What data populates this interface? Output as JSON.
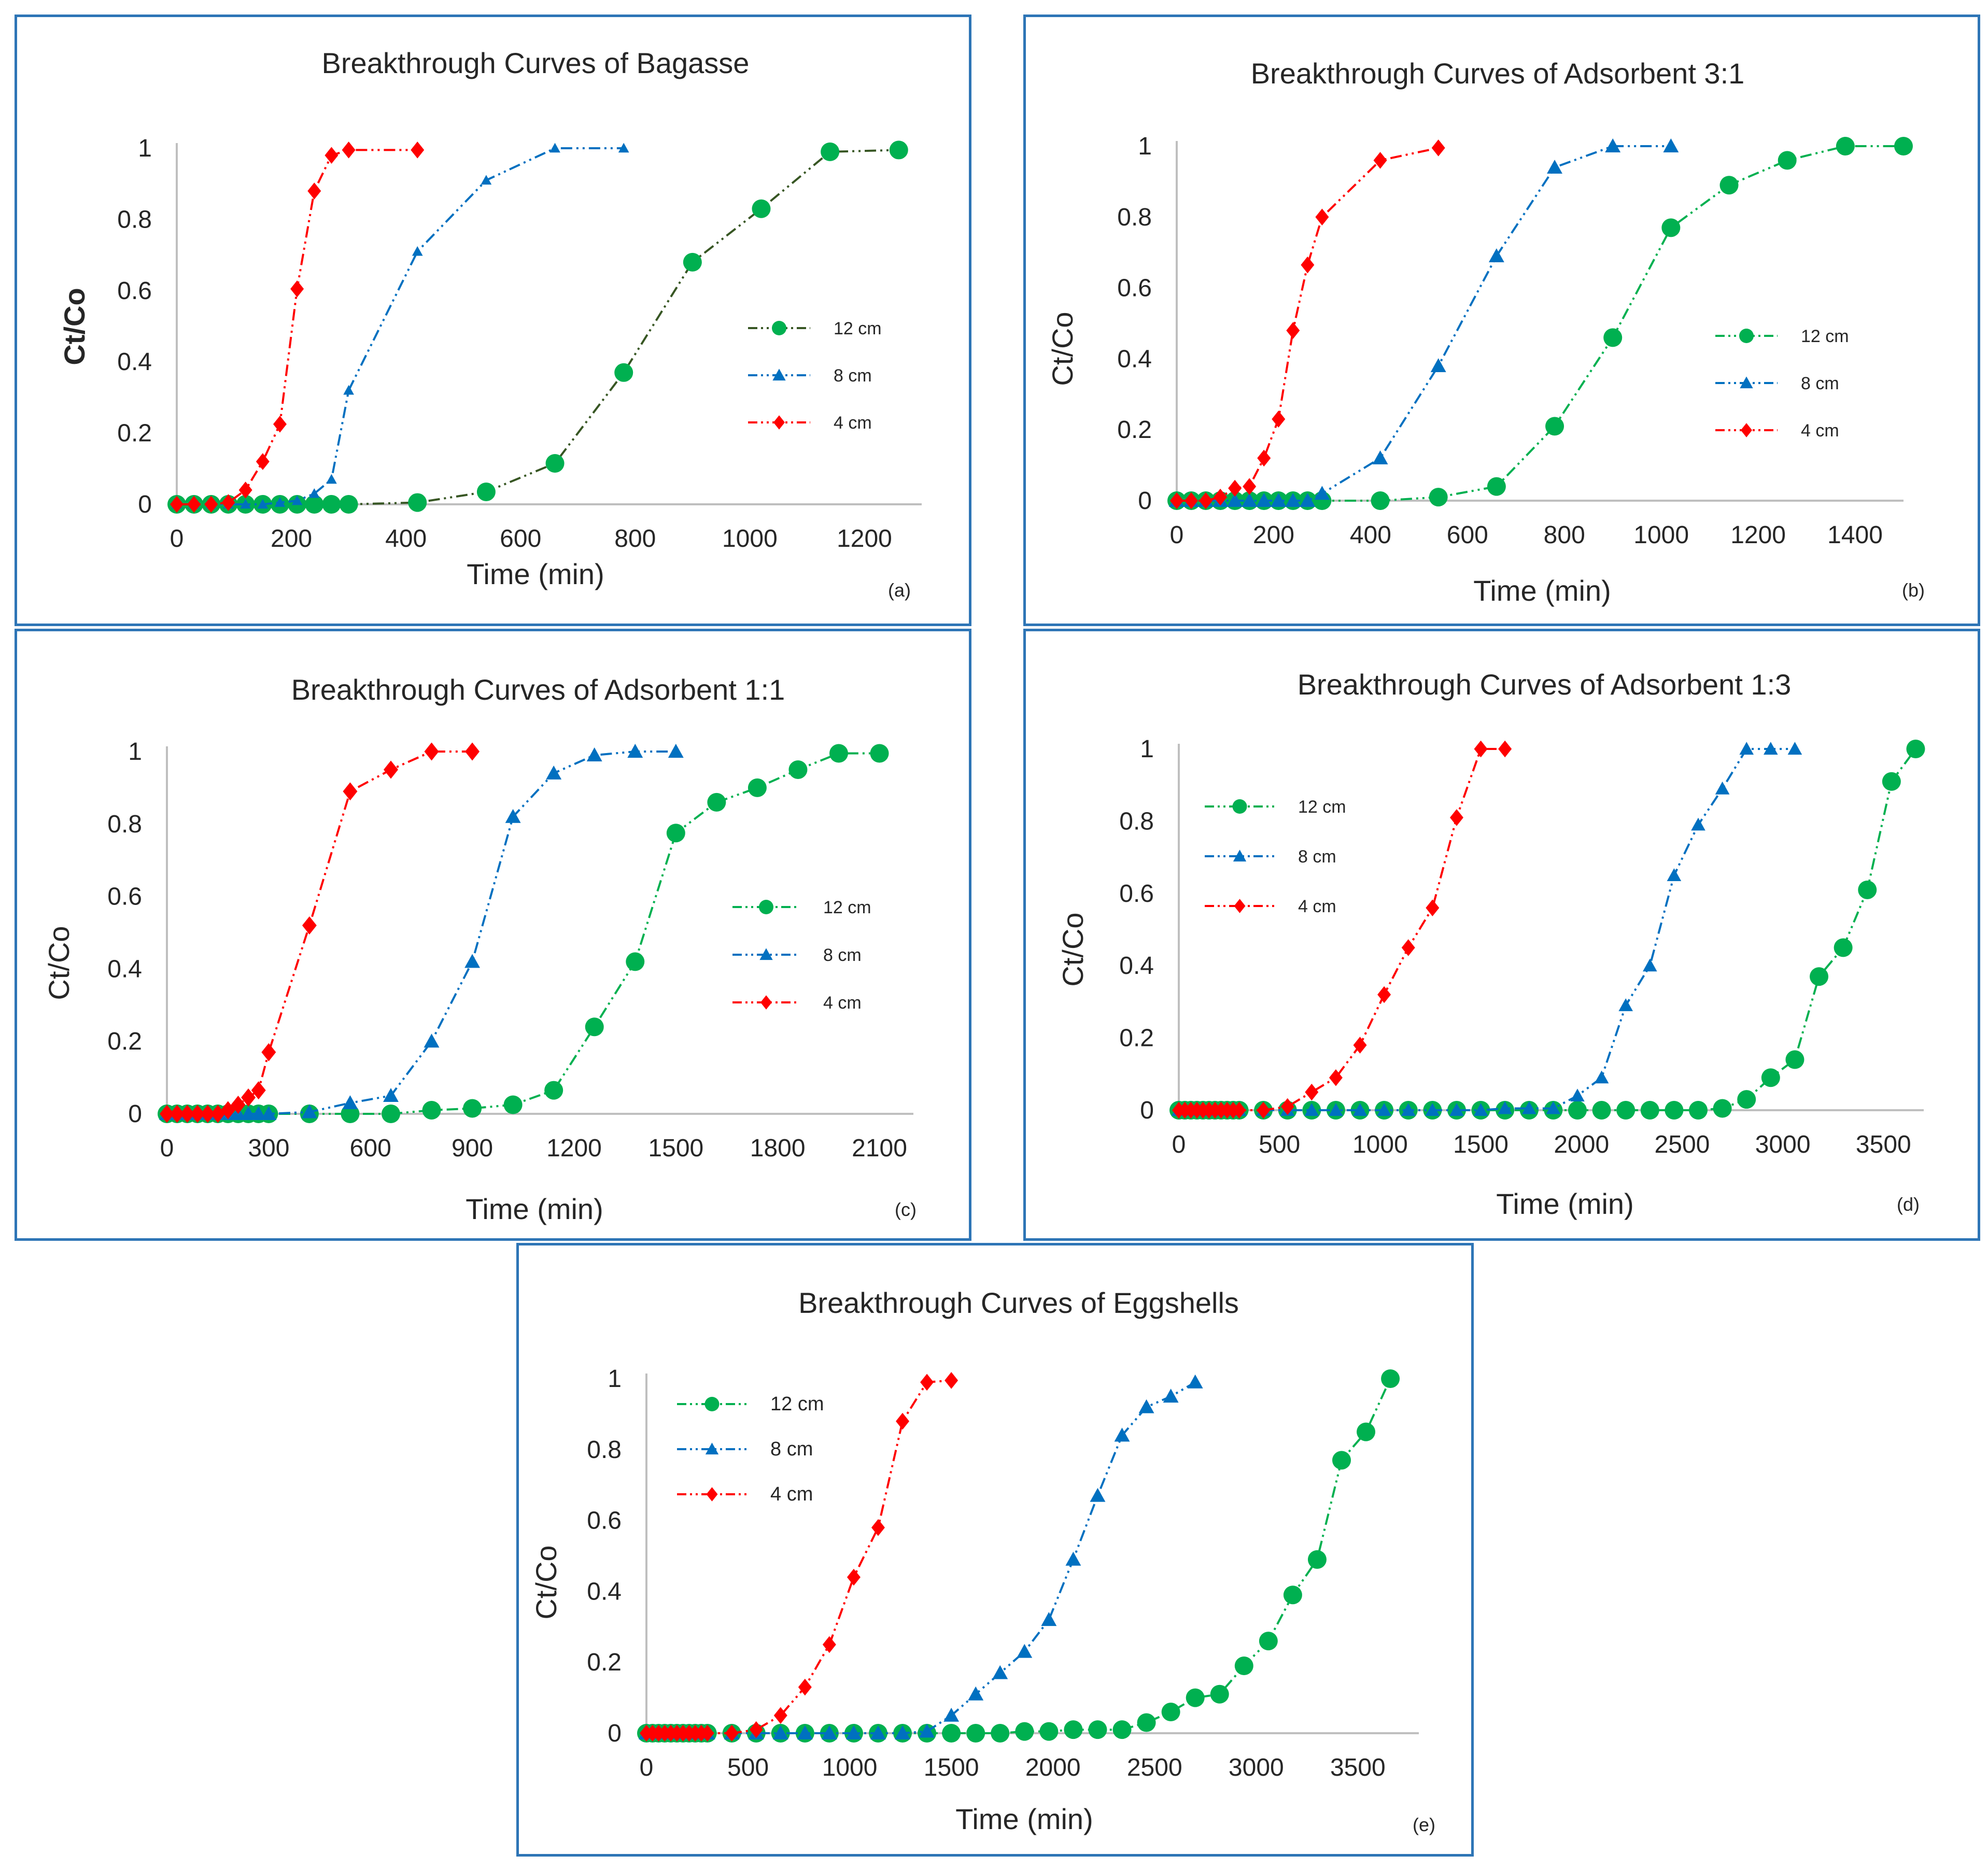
{
  "chart_data": [
    {
      "id": "a",
      "type": "line",
      "title": "Breakthrough Curves of Bagasse",
      "panel_label": "(a)",
      "xlabel": "Time (min)",
      "ylabel": "Ct/Co",
      "xlim": [
        0,
        1300
      ],
      "ylim": [
        0,
        1
      ],
      "xticks": [
        "0",
        "200",
        "400",
        "600",
        "800",
        "1000",
        "1200"
      ],
      "yticks": [
        "0",
        "0.2",
        "0.4",
        "0.6",
        "0.8",
        "1"
      ],
      "legend_position": "right",
      "series": [
        {
          "name": "12 cm",
          "color": "#00b050",
          "line_color": "#375623",
          "marker": "circle",
          "x": [
            0,
            30,
            60,
            90,
            120,
            150,
            180,
            210,
            240,
            270,
            300,
            420,
            540,
            660,
            780,
            900,
            1020,
            1140,
            1260
          ],
          "y": [
            0,
            0,
            0,
            0,
            0,
            0,
            0,
            0,
            0,
            0,
            0,
            0.005,
            0.035,
            0.115,
            0.37,
            0.68,
            0.83,
            0.99,
            0.995
          ]
        },
        {
          "name": "8 cm",
          "color": "#0070c0",
          "line_color": "#0070c0",
          "marker": "triangle",
          "x": [
            0,
            30,
            60,
            90,
            120,
            150,
            180,
            210,
            240,
            270,
            300,
            420,
            540,
            660,
            780
          ],
          "y": [
            0,
            0,
            0,
            0,
            0,
            0,
            0.005,
            0.01,
            0.03,
            0.07,
            0.32,
            0.71,
            0.91,
            1.0,
            1.0
          ]
        },
        {
          "name": "4 cm",
          "color": "#ff0000",
          "line_color": "#ff0000",
          "marker": "diamond",
          "x": [
            0,
            30,
            60,
            90,
            120,
            150,
            180,
            210,
            240,
            270,
            300,
            420
          ],
          "y": [
            0,
            0,
            0,
            0.005,
            0.04,
            0.12,
            0.225,
            0.605,
            0.88,
            0.98,
            0.995,
            0.995
          ]
        }
      ]
    },
    {
      "id": "b",
      "type": "line",
      "title": "Breakthrough Curves of Adsorbent 3:1",
      "panel_label": "(b)",
      "xlabel": "Time (min)",
      "ylabel": "Ct/Co",
      "xlim": [
        0,
        1500
      ],
      "ylim": [
        0,
        1
      ],
      "xticks": [
        "0",
        "200",
        "400",
        "600",
        "800",
        "1000",
        "1200",
        "1400"
      ],
      "yticks": [
        "0",
        "0.2",
        "0.4",
        "0.6",
        "0.8",
        "1"
      ],
      "legend_position": "right",
      "series": [
        {
          "name": "12 cm",
          "color": "#00b050",
          "line_color": "#00b050",
          "marker": "circle",
          "x": [
            0,
            30,
            60,
            90,
            120,
            150,
            180,
            210,
            240,
            270,
            300,
            420,
            540,
            660,
            780,
            900,
            1020,
            1140,
            1260,
            1380,
            1500
          ],
          "y": [
            0,
            0,
            0,
            0,
            0,
            0,
            0,
            0,
            0,
            0,
            0,
            0,
            0.01,
            0.04,
            0.21,
            0.46,
            0.77,
            0.89,
            0.96,
            1.0,
            1.0
          ]
        },
        {
          "name": "8 cm",
          "color": "#0070c0",
          "line_color": "#0070c0",
          "marker": "triangle",
          "x": [
            0,
            30,
            60,
            90,
            120,
            150,
            180,
            210,
            240,
            270,
            300,
            420,
            540,
            660,
            780,
            900,
            1020
          ],
          "y": [
            0,
            0,
            0,
            0,
            0,
            0,
            0,
            0,
            0,
            0,
            0.02,
            0.12,
            0.38,
            0.69,
            0.94,
            1.0,
            1.0
          ]
        },
        {
          "name": "4 cm",
          "color": "#ff0000",
          "line_color": "#ff0000",
          "marker": "diamond",
          "x": [
            0,
            30,
            60,
            90,
            120,
            150,
            180,
            210,
            240,
            270,
            300,
            420,
            540
          ],
          "y": [
            0,
            0,
            0,
            0.01,
            0.035,
            0.04,
            0.12,
            0.23,
            0.48,
            0.665,
            0.8,
            0.96,
            0.995
          ]
        }
      ]
    },
    {
      "id": "c",
      "type": "line",
      "title": "Breakthrough Curves of Adsorbent 1:1",
      "panel_label": "(c)",
      "xlabel": "Time (min)",
      "ylabel": "Ct/Co",
      "xlim": [
        0,
        2200
      ],
      "ylim": [
        0,
        1
      ],
      "xticks": [
        "0",
        "300",
        "600",
        "900",
        "1200",
        "1500",
        "1800",
        "2100"
      ],
      "yticks": [
        "0",
        "0.2",
        "0.4",
        "0.6",
        "0.8",
        "1"
      ],
      "legend_position": "right",
      "series": [
        {
          "name": "12 cm",
          "color": "#00b050",
          "line_color": "#00b050",
          "marker": "circle",
          "x": [
            0,
            30,
            60,
            90,
            120,
            150,
            180,
            210,
            240,
            270,
            300,
            420,
            540,
            660,
            780,
            900,
            1020,
            1140,
            1260,
            1380,
            1500,
            1620,
            1740,
            1860,
            1980,
            2100
          ],
          "y": [
            0,
            0,
            0,
            0,
            0,
            0,
            0,
            0,
            0,
            0,
            0,
            0,
            0,
            0,
            0.01,
            0.015,
            0.025,
            0.065,
            0.24,
            0.42,
            0.775,
            0.86,
            0.9,
            0.95,
            0.995,
            0.995
          ]
        },
        {
          "name": "8 cm",
          "color": "#0070c0",
          "line_color": "#0070c0",
          "marker": "triangle",
          "x": [
            0,
            30,
            60,
            90,
            120,
            150,
            180,
            210,
            240,
            270,
            300,
            420,
            540,
            660,
            780,
            900,
            1020,
            1140,
            1260,
            1380,
            1500
          ],
          "y": [
            0,
            0,
            0,
            0,
            0,
            0,
            0,
            0,
            0,
            0,
            0,
            0.005,
            0.03,
            0.05,
            0.2,
            0.42,
            0.82,
            0.94,
            0.99,
            1.0,
            1.0
          ]
        },
        {
          "name": "4 cm",
          "color": "#ff0000",
          "line_color": "#ff0000",
          "marker": "diamond",
          "x": [
            0,
            30,
            60,
            90,
            120,
            150,
            180,
            210,
            240,
            270,
            300,
            420,
            540,
            660,
            780,
            900
          ],
          "y": [
            0,
            0,
            0,
            0,
            0,
            0,
            0.01,
            0.025,
            0.045,
            0.065,
            0.17,
            0.52,
            0.89,
            0.95,
            1.0,
            1.0
          ]
        }
      ]
    },
    {
      "id": "d",
      "type": "line",
      "title": "Breakthrough Curves of Adsorbent 1:3",
      "panel_label": "(d)",
      "xlabel": "Time (min)",
      "ylabel": "Ct/Co",
      "xlim": [
        0,
        3700
      ],
      "ylim": [
        0,
        1
      ],
      "xticks": [
        "0",
        "500",
        "1000",
        "1500",
        "2000",
        "2500",
        "3000",
        "3500"
      ],
      "yticks": [
        "0",
        "0.2",
        "0.4",
        "0.6",
        "0.8",
        "1"
      ],
      "legend_position": "top-left",
      "series": [
        {
          "name": "12 cm",
          "color": "#00b050",
          "line_color": "#00b050",
          "marker": "circle",
          "x": [
            0,
            30,
            60,
            90,
            120,
            150,
            180,
            210,
            240,
            270,
            300,
            420,
            540,
            660,
            780,
            900,
            1020,
            1140,
            1260,
            1380,
            1500,
            1620,
            1740,
            1860,
            1980,
            2100,
            2220,
            2340,
            2460,
            2580,
            2700,
            2820,
            2940,
            3060,
            3180,
            3300,
            3420,
            3540,
            3660
          ],
          "y": [
            0,
            0,
            0,
            0,
            0,
            0,
            0,
            0,
            0,
            0,
            0,
            0,
            0,
            0,
            0,
            0,
            0,
            0,
            0,
            0,
            0,
            0,
            0,
            0,
            0,
            0,
            0,
            0,
            0,
            0,
            0.005,
            0.03,
            0.09,
            0.14,
            0.37,
            0.45,
            0.61,
            0.91,
            1.0
          ]
        },
        {
          "name": "8 cm",
          "color": "#0070c0",
          "line_color": "#0070c0",
          "marker": "triangle",
          "x": [
            0,
            30,
            60,
            90,
            120,
            150,
            180,
            210,
            240,
            270,
            300,
            420,
            540,
            660,
            780,
            900,
            1020,
            1140,
            1260,
            1380,
            1500,
            1620,
            1740,
            1860,
            1980,
            2100,
            2220,
            2340,
            2460,
            2580,
            2700,
            2820,
            2940,
            3060
          ],
          "y": [
            0,
            0,
            0,
            0,
            0,
            0,
            0,
            0,
            0,
            0,
            0,
            0,
            0,
            0,
            0,
            0,
            0,
            0,
            0,
            0,
            0,
            0.005,
            0.005,
            0.005,
            0.04,
            0.09,
            0.29,
            0.4,
            0.65,
            0.79,
            0.89,
            1.0,
            1.0,
            1.0
          ]
        },
        {
          "name": "4 cm",
          "color": "#ff0000",
          "line_color": "#ff0000",
          "marker": "diamond",
          "x": [
            0,
            30,
            60,
            90,
            120,
            150,
            180,
            210,
            240,
            270,
            300,
            420,
            540,
            660,
            780,
            900,
            1020,
            1140,
            1260,
            1380,
            1500,
            1620
          ],
          "y": [
            0,
            0,
            0,
            0,
            0,
            0,
            0,
            0,
            0,
            0,
            0,
            0,
            0.01,
            0.05,
            0.09,
            0.18,
            0.32,
            0.45,
            0.56,
            0.81,
            1.0,
            1.0
          ]
        }
      ]
    },
    {
      "id": "e",
      "type": "line",
      "title": "Breakthrough Curves of Eggshells",
      "panel_label": "(e)",
      "xlabel": "Time (min)",
      "ylabel": "Ct/Co",
      "xlim": [
        0,
        3800
      ],
      "ylim": [
        0,
        1
      ],
      "xticks": [
        "0",
        "500",
        "1000",
        "1500",
        "2000",
        "2500",
        "3000",
        "3500"
      ],
      "yticks": [
        "0",
        "0.2",
        "0.4",
        "0.6",
        "0.8",
        "1"
      ],
      "legend_position": "top-left",
      "series": [
        {
          "name": "12 cm",
          "color": "#00b050",
          "line_color": "#00b050",
          "marker": "circle",
          "x": [
            0,
            30,
            60,
            90,
            120,
            150,
            180,
            210,
            240,
            270,
            300,
            420,
            540,
            660,
            780,
            900,
            1020,
            1140,
            1260,
            1380,
            1500,
            1620,
            1740,
            1860,
            1980,
            2100,
            2220,
            2340,
            2460,
            2580,
            2700,
            2820,
            2940,
            3060,
            3180,
            3300,
            3420,
            3540,
            3660
          ],
          "y": [
            0,
            0,
            0,
            0,
            0,
            0,
            0,
            0,
            0,
            0,
            0,
            0,
            0,
            0,
            0,
            0,
            0,
            0,
            0,
            0,
            0,
            0,
            0,
            0.005,
            0.005,
            0.01,
            0.01,
            0.01,
            0.03,
            0.06,
            0.1,
            0.11,
            0.19,
            0.26,
            0.39,
            0.49,
            0.77,
            0.85,
            1.0
          ]
        },
        {
          "name": "8 cm",
          "color": "#0070c0",
          "line_color": "#0070c0",
          "marker": "triangle",
          "x": [
            0,
            30,
            60,
            90,
            120,
            150,
            180,
            210,
            240,
            270,
            300,
            420,
            540,
            660,
            780,
            900,
            1020,
            1140,
            1260,
            1380,
            1500,
            1620,
            1740,
            1860,
            1980,
            2100,
            2220,
            2340,
            2460,
            2580,
            2700
          ],
          "y": [
            0,
            0,
            0,
            0,
            0,
            0,
            0,
            0,
            0,
            0,
            0,
            0,
            0,
            0,
            0,
            0,
            0,
            0,
            0,
            0.005,
            0.05,
            0.11,
            0.17,
            0.23,
            0.32,
            0.49,
            0.67,
            0.84,
            0.92,
            0.95,
            0.99
          ]
        },
        {
          "name": "4 cm",
          "color": "#ff0000",
          "line_color": "#ff0000",
          "marker": "diamond",
          "x": [
            0,
            30,
            60,
            90,
            120,
            150,
            180,
            210,
            240,
            270,
            300,
            420,
            540,
            660,
            780,
            900,
            1020,
            1140,
            1260,
            1380,
            1500
          ],
          "y": [
            0,
            0,
            0,
            0,
            0,
            0,
            0,
            0,
            0,
            0,
            0,
            0,
            0.01,
            0.05,
            0.13,
            0.25,
            0.44,
            0.58,
            0.88,
            0.99,
            0.995
          ]
        }
      ]
    }
  ]
}
